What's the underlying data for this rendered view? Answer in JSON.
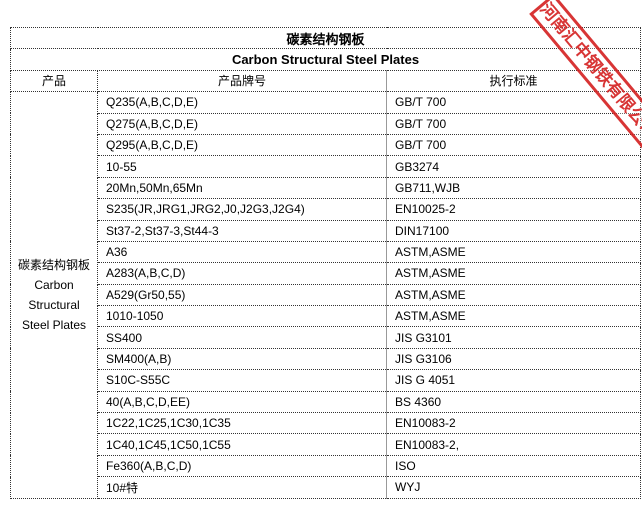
{
  "table": {
    "title": "碳素结构钢板",
    "subtitle": "Carbon Structural Steel Plates",
    "headers": [
      "产品",
      "产品牌号",
      "执行标准"
    ],
    "product": "碳素结构钢板 Carbon Structural Steel Plates",
    "rows": [
      {
        "grade": "Q235(A,B,C,D,E)",
        "standard": "GB/T 700"
      },
      {
        "grade": "Q275(A,B,C,D,E)",
        "standard": "GB/T 700"
      },
      {
        "grade": "Q295(A,B,C,D,E)",
        "standard": "GB/T 700"
      },
      {
        "grade": "10-55",
        "standard": "GB3274"
      },
      {
        "grade": "20Mn,50Mn,65Mn",
        "standard": "GB711,WJB"
      },
      {
        "grade": "S235(JR,JRG1,JRG2,J0,J2G3,J2G4)",
        "standard": "EN10025-2"
      },
      {
        "grade": "St37-2,St37-3,St44-3",
        "standard": "DIN17100"
      },
      {
        "grade": "A36",
        "standard": "ASTM,ASME"
      },
      {
        "grade": "A283(A,B,C,D)",
        "standard": "ASTM,ASME"
      },
      {
        "grade": "A529(Gr50,55)",
        "standard": "ASTM,ASME"
      },
      {
        "grade": "1010-1050",
        "standard": "ASTM,ASME"
      },
      {
        "grade": "SS400",
        "standard": "JIS G3101"
      },
      {
        "grade": "SM400(A,B)",
        "standard": "JIS G3106"
      },
      {
        "grade": "S10C-S55C",
        "standard": "JIS G 4051"
      },
      {
        "grade": "40(A,B,C,D,EE)",
        "standard": "BS 4360"
      },
      {
        "grade": "1C22,1C25,1C30,1C35",
        "standard": "EN10083-2"
      },
      {
        "grade": "1C40,1C45,1C50,1C55",
        "standard": "EN10083-2,"
      },
      {
        "grade": "Fe360(A,B,C,D)",
        "standard": "ISO"
      },
      {
        "grade": "10#特",
        "standard": "WYJ"
      }
    ]
  },
  "stamp": {
    "text": "河南汇中钢铁有限公司",
    "color": "#d42020"
  }
}
